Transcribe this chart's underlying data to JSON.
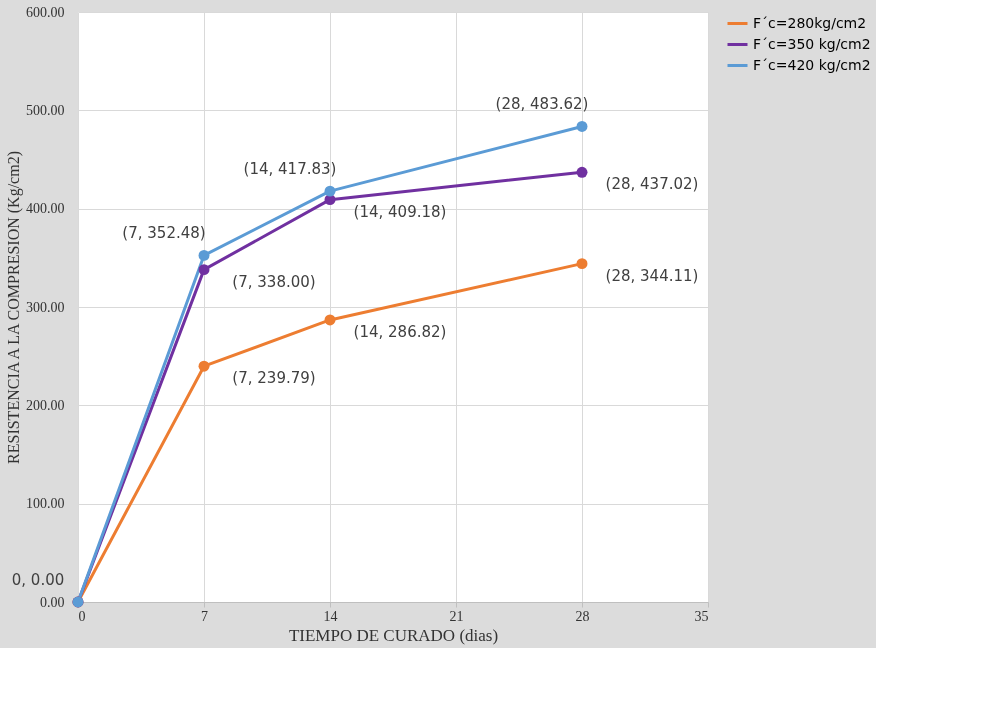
{
  "chart_data": {
    "type": "line",
    "xlabel": "TIEMPO DE CURADO (dias)",
    "ylabel": "RESISTENCIA A LA COMPRESION (Kg/cm2)",
    "x": [
      0,
      7,
      14,
      28
    ],
    "series": [
      {
        "name": "F´c=280kg/cm2",
        "color": "#ed7d31",
        "values": [
          0,
          239.79,
          286.82,
          344.11
        ],
        "value_labels": [
          null,
          "(7, 239.79)",
          "(14, 286.82)",
          "(28, 344.11)"
        ]
      },
      {
        "name": "F´c=350 kg/cm2",
        "color": "#7030a0",
        "values": [
          0,
          338.0,
          409.18,
          437.02
        ],
        "value_labels": [
          null,
          "(7, 338.00)",
          "(14, 409.18)",
          "(28, 437.02)"
        ]
      },
      {
        "name": "F´c=420 kg/cm2",
        "color": "#5b9bd5",
        "values": [
          0,
          352.48,
          417.83,
          483.62
        ],
        "value_labels": [
          "0, 0.00",
          "(7, 352.48)",
          "(14, 417.83)",
          "(28, 483.62)"
        ]
      }
    ],
    "xlim": [
      0,
      35
    ],
    "xticks": [
      0,
      7,
      14,
      21,
      28,
      35
    ],
    "ylim": [
      0,
      600
    ],
    "yticks": [
      {
        "value": 0,
        "label": "0.00"
      },
      {
        "value": 100,
        "label": "100.00"
      },
      {
        "value": 200,
        "label": "200.00"
      },
      {
        "value": 300,
        "label": "300.00"
      },
      {
        "value": 400,
        "label": "400.00"
      },
      {
        "value": 500,
        "label": "500.00"
      },
      {
        "value": 600,
        "label": "600.00"
      }
    ],
    "grid": true,
    "legend": "right",
    "marker": "circle",
    "line_style": "solid"
  }
}
